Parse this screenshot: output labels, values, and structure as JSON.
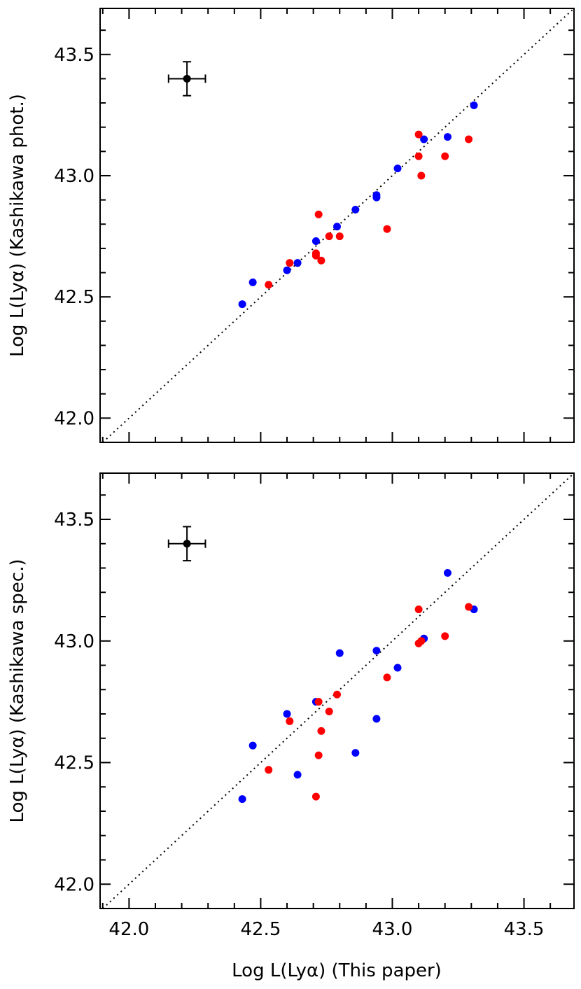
{
  "chart_data": [
    {
      "type": "scatter",
      "ylabel": "Log L(Lyα) (Kashikawa phot.)",
      "xlim": [
        41.89,
        43.69
      ],
      "ylim": [
        41.9,
        43.69
      ],
      "x_ticks": [
        "42.0",
        "42.5",
        "43.0",
        "43.5"
      ],
      "y_ticks": [
        "42.0",
        "42.5",
        "43.0",
        "43.5"
      ],
      "show_x_tick_labels": false,
      "one_to_one_line": true,
      "error_bar": {
        "x": 42.22,
        "y": 43.4,
        "xerr": 0.07,
        "yerr": 0.07,
        "color": "#000000"
      },
      "series": [
        {
          "color": "#0000ff",
          "points": [
            [
              42.43,
              42.47
            ],
            [
              42.47,
              42.56
            ],
            [
              42.6,
              42.61
            ],
            [
              42.64,
              42.64
            ],
            [
              42.71,
              42.73
            ],
            [
              42.79,
              42.79
            ],
            [
              42.86,
              42.86
            ],
            [
              42.94,
              42.92
            ],
            [
              42.94,
              42.91
            ],
            [
              43.02,
              43.03
            ],
            [
              43.12,
              43.15
            ],
            [
              43.21,
              43.16
            ],
            [
              43.31,
              43.29
            ]
          ]
        },
        {
          "color": "#ff0000",
          "points": [
            [
              42.53,
              42.55
            ],
            [
              42.61,
              42.64
            ],
            [
              42.72,
              42.84
            ],
            [
              42.71,
              42.68
            ],
            [
              42.71,
              42.67
            ],
            [
              42.73,
              42.65
            ],
            [
              42.76,
              42.75
            ],
            [
              42.8,
              42.75
            ],
            [
              42.98,
              42.78
            ],
            [
              43.1,
              43.17
            ],
            [
              43.1,
              43.08
            ],
            [
              43.11,
              43.0
            ],
            [
              43.2,
              43.08
            ],
            [
              43.29,
              43.15
            ]
          ]
        }
      ]
    },
    {
      "type": "scatter",
      "xlabel": "Log L(Lyα) (This paper)",
      "ylabel": "Log L(Lyα) (Kashikawa spec.)",
      "xlim": [
        41.89,
        43.69
      ],
      "ylim": [
        41.9,
        43.69
      ],
      "x_ticks": [
        "42.0",
        "42.5",
        "43.0",
        "43.5"
      ],
      "y_ticks": [
        "42.0",
        "42.5",
        "43.0",
        "43.5"
      ],
      "show_x_tick_labels": true,
      "one_to_one_line": true,
      "error_bar": {
        "x": 42.22,
        "y": 43.4,
        "xerr": 0.07,
        "yerr": 0.07,
        "color": "#000000"
      },
      "series": [
        {
          "color": "#0000ff",
          "points": [
            [
              42.43,
              42.35
            ],
            [
              42.47,
              42.57
            ],
            [
              42.6,
              42.7
            ],
            [
              42.64,
              42.45
            ],
            [
              42.71,
              42.75
            ],
            [
              42.8,
              42.95
            ],
            [
              42.86,
              42.54
            ],
            [
              42.94,
              42.96
            ],
            [
              42.94,
              42.68
            ],
            [
              43.02,
              42.89
            ],
            [
              43.12,
              43.01
            ],
            [
              43.21,
              43.28
            ],
            [
              43.31,
              43.13
            ]
          ]
        },
        {
          "color": "#ff0000",
          "points": [
            [
              42.53,
              42.47
            ],
            [
              42.61,
              42.67
            ],
            [
              42.72,
              42.75
            ],
            [
              42.72,
              42.53
            ],
            [
              42.71,
              42.36
            ],
            [
              42.73,
              42.63
            ],
            [
              42.76,
              42.71
            ],
            [
              42.79,
              42.78
            ],
            [
              42.98,
              42.85
            ],
            [
              43.1,
              43.13
            ],
            [
              43.1,
              42.99
            ],
            [
              43.11,
              43.0
            ],
            [
              43.2,
              43.02
            ],
            [
              43.29,
              43.14
            ]
          ]
        }
      ]
    }
  ]
}
